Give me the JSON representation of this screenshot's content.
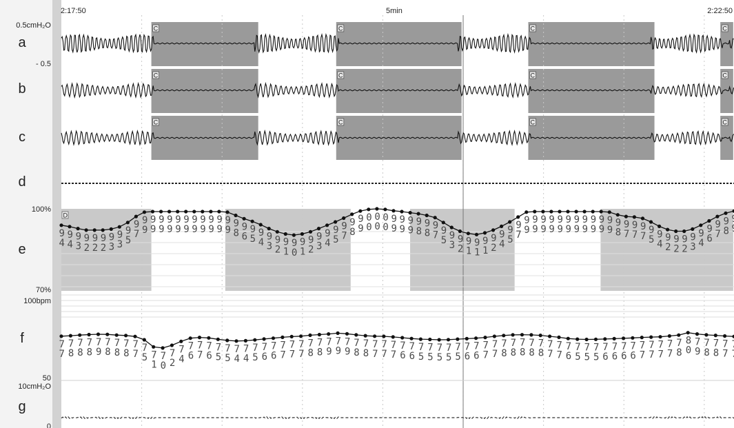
{
  "chart_data": {
    "type": "line",
    "time_axis": {
      "start": "2:17:50",
      "mid": "5min",
      "end": "2:22:50",
      "vertical_grid": true
    },
    "apnea_marker": "C",
    "spo2_marker": "D",
    "apnea_events_min": [
      [
        1.12,
        2.45
      ],
      [
        3.42,
        4.98
      ],
      [
        5.81,
        7.38
      ],
      [
        8.2,
        8.36
      ]
    ],
    "channels": [
      {
        "id": "a",
        "label": "a",
        "scale_top": "0.5cmH₂O",
        "scale_bottom": "- 0.5",
        "kind": "wave"
      },
      {
        "id": "b",
        "label": "b",
        "kind": "wave"
      },
      {
        "id": "c",
        "label": "c",
        "kind": "wave"
      },
      {
        "id": "d",
        "label": "d",
        "kind": "flat"
      },
      {
        "id": "e",
        "label": "e",
        "scale_top": "100%",
        "scale_bottom": "70%",
        "kind": "trend",
        "ylim": [
          70,
          100
        ]
      },
      {
        "id": "f",
        "label": "f",
        "scale_top": "100bpm",
        "scale_bottom": "50",
        "kind": "trend",
        "ylim": [
          50,
          100
        ]
      },
      {
        "id": "g",
        "label": "g",
        "scale_top": "10cmH₂O",
        "scale_bottom": "0",
        "kind": "low"
      }
    ],
    "spo2_desat_bands_min": [
      [
        0.0,
        1.12
      ],
      [
        2.04,
        3.6
      ],
      [
        4.34,
        5.64
      ],
      [
        6.71,
        8.36
      ]
    ],
    "series": [
      {
        "channel": "e",
        "values": [
          94.0,
          93.5,
          92.8,
          92.2,
          92.2,
          92.2,
          92.6,
          93.4,
          95.0,
          97.2,
          98.8,
          99.0,
          99.0,
          99.0,
          99.0,
          99.0,
          99.0,
          99.0,
          99.0,
          99.0,
          98.8,
          97.6,
          96.4,
          95.4,
          94.2,
          92.8,
          91.6,
          90.8,
          90.4,
          90.8,
          91.6,
          92.8,
          94.0,
          95.2,
          96.6,
          98.0,
          99.2,
          99.8,
          100.0,
          99.8,
          99.3,
          99.0,
          98.6,
          98.2,
          97.6,
          96.8,
          95.0,
          93.2,
          91.8,
          91.0,
          90.6,
          91.2,
          92.2,
          93.6,
          95.2,
          97.0,
          98.8,
          99.0,
          99.0,
          99.0,
          99.0,
          99.0,
          99.0,
          99.0,
          99.0,
          99.0,
          98.8,
          97.8,
          97.2,
          97.0,
          96.5,
          95.2,
          93.6,
          92.4,
          91.8,
          91.8,
          92.6,
          94.0,
          95.6,
          97.2,
          98.4,
          99.2
        ]
      },
      {
        "channel": "f",
        "values": [
          77.3,
          77.6,
          78.0,
          78.3,
          78.5,
          78.4,
          78.0,
          77.7,
          77.1,
          75.0,
          70.5,
          69.8,
          71.5,
          74.0,
          76.0,
          76.5,
          76.2,
          75.3,
          74.6,
          74.2,
          74.4,
          74.9,
          75.5,
          76.0,
          76.6,
          77.0,
          77.3,
          77.9,
          78.3,
          78.7,
          79.2,
          78.8,
          78.1,
          77.6,
          77.3,
          77.2,
          76.8,
          76.3,
          75.8,
          75.4,
          75.2,
          75.0,
          75.1,
          75.4,
          75.7,
          76.0,
          76.5,
          77.2,
          77.7,
          78.1,
          78.2,
          78.1,
          77.8,
          77.2,
          76.6,
          75.8,
          75.4,
          75.2,
          75.3,
          75.5,
          75.7,
          75.9,
          76.2,
          76.5,
          76.7,
          76.9,
          77.4,
          78.0,
          79.5,
          78.7,
          78.1,
          77.8,
          77.4,
          77.1
        ]
      }
    ]
  }
}
